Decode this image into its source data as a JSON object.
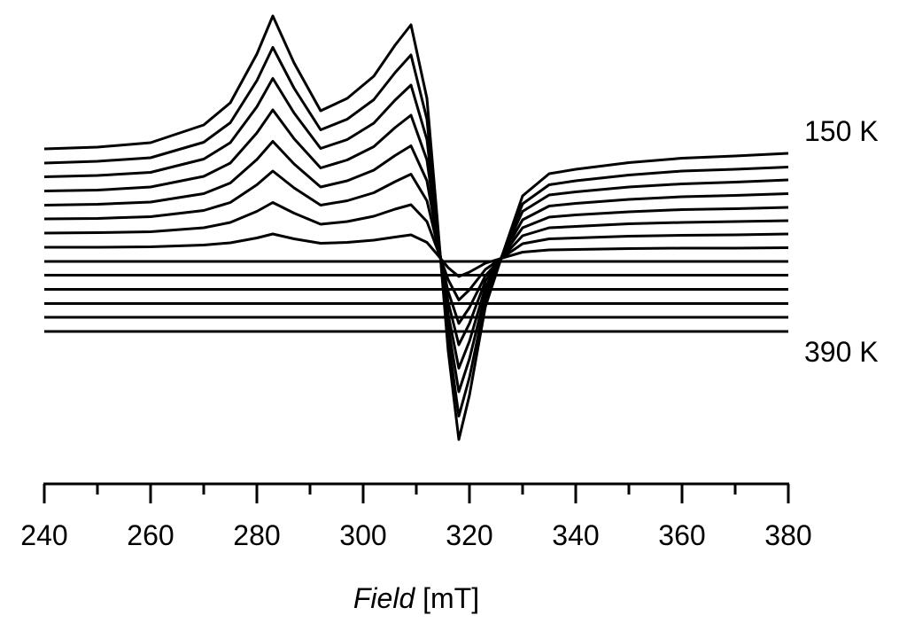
{
  "chart_data": {
    "type": "line",
    "xlabel": [
      "Field",
      "[mT]"
    ],
    "x": [
      240,
      250,
      260,
      270,
      275,
      280,
      283,
      287,
      292,
      297,
      302,
      306,
      309,
      312,
      314,
      316,
      318,
      320,
      323,
      326,
      330,
      335,
      340,
      350,
      360,
      370,
      380
    ],
    "xlim": [
      240,
      380
    ],
    "xticks": [
      240,
      260,
      280,
      300,
      320,
      340,
      360,
      380
    ],
    "xminor_ticks": [
      250,
      270,
      290,
      310,
      330,
      350,
      370
    ],
    "ylim": [
      0,
      106
    ],
    "color": "#000000",
    "series": [
      {
        "name": "150 K",
        "values": [
          75.6,
          76,
          77,
          81,
          86,
          97,
          105.6,
          95,
          84.2,
          87,
          92,
          99,
          103.6,
          87,
          59,
          30,
          10,
          20,
          40,
          51,
          65,
          70,
          71,
          72.5,
          73.5,
          74,
          74.6
        ]
      },
      {
        "values": [
          72.4,
          72.8,
          73.6,
          77.1,
          81.5,
          91,
          98.5,
          89.3,
          79.9,
          82.3,
          86.7,
          92.8,
          96.8,
          82.3,
          58,
          32.7,
          15.3,
          24,
          41.4,
          51,
          63.2,
          67.5,
          68.4,
          69.7,
          70.6,
          71,
          71.5
        ]
      },
      {
        "values": [
          69.3,
          69.6,
          70.3,
          73.3,
          77,
          85.1,
          91.5,
          83.7,
          75.7,
          77.7,
          81.4,
          86.6,
          90,
          77.7,
          57,
          35.6,
          20.8,
          28.2,
          43,
          51.1,
          61.5,
          65.2,
          65.9,
          67,
          67.7,
          68.1,
          68.6
        ]
      },
      {
        "values": [
          66.1,
          66.3,
          67,
          69.4,
          72.4,
          79.2,
          84.4,
          77.9,
          71.3,
          73.1,
          76.1,
          80.4,
          83.2,
          73.1,
          56,
          38.3,
          26.1,
          32.2,
          44.4,
          51.1,
          59.6,
          62.7,
          63.3,
          64.2,
          64.8,
          65.1,
          65.5
        ]
      },
      {
        "values": [
          62.9,
          63.1,
          63.6,
          65.5,
          67.9,
          73.2,
          77.3,
          72.2,
          67,
          68.4,
          70.8,
          74.1,
          76.3,
          68.4,
          54.9,
          41,
          31.4,
          36.2,
          45.8,
          51.1,
          57.8,
          60.2,
          60.7,
          61.4,
          61.9,
          62.1,
          62.4
        ]
      },
      {
        "values": [
          59.8,
          59.9,
          60.3,
          61.7,
          63.5,
          67.5,
          70.6,
          66.8,
          62.9,
          63.9,
          65.7,
          68.2,
          69.9,
          63.9,
          53.8,
          43.4,
          36.2,
          39.8,
          47,
          50.9,
          56,
          57.8,
          58.1,
          58.7,
          59,
          59.2,
          59.4
        ]
      },
      {
        "values": [
          56.6,
          56.7,
          56.9,
          57.8,
          59,
          61.5,
          63.5,
          61.1,
          58.6,
          59.2,
          60.4,
          62,
          63,
          59.2,
          52.8,
          46.1,
          41.5,
          43.8,
          48.4,
          50.9,
          54.2,
          55.3,
          55.5,
          55.9,
          56.1,
          56.2,
          56.4
        ]
      },
      {
        "values": [
          53.4,
          53.4,
          53.5,
          53.9,
          54.4,
          55.5,
          56.4,
          55.3,
          54.3,
          54.5,
          55,
          55.7,
          56.2,
          54.5,
          51.7,
          48.8,
          46.8,
          47.8,
          49.8,
          50.9,
          52.3,
          52.8,
          52.9,
          53.1,
          53.2,
          53.2,
          53.3
        ]
      },
      {
        "values": [
          50.2,
          50.2,
          50.2,
          50.2,
          50.2,
          50.2,
          50.2,
          50.2,
          50.2,
          50.2,
          50.2,
          50.2,
          50.2,
          50.2,
          50.2,
          50.2,
          50.2,
          50.2,
          50.2,
          50.2,
          50.2,
          50.2,
          50.2,
          50.2,
          50.2,
          50.2,
          50.2
        ]
      },
      {
        "values": [
          47.1,
          47.1,
          47.1,
          47.1,
          47.1,
          47.1,
          47.1,
          47.1,
          47.1,
          47.1,
          47.1,
          47.1,
          47.1,
          47.1,
          47.1,
          47.1,
          47.1,
          47.1,
          47.1,
          47.1,
          47.1,
          47.1,
          47.1,
          47.1,
          47.1,
          47.1,
          47.1
        ]
      },
      {
        "values": [
          43.9,
          43.9,
          43.9,
          43.9,
          43.9,
          43.9,
          43.9,
          43.9,
          43.9,
          43.9,
          43.9,
          43.9,
          43.9,
          43.9,
          43.9,
          43.9,
          43.9,
          43.9,
          43.9,
          43.9,
          43.9,
          43.9,
          43.9,
          43.9,
          43.9,
          43.9,
          43.9
        ]
      },
      {
        "values": [
          40.7,
          40.7,
          40.7,
          40.7,
          40.7,
          40.7,
          40.7,
          40.7,
          40.7,
          40.7,
          40.7,
          40.7,
          40.7,
          40.7,
          40.7,
          40.7,
          40.7,
          40.7,
          40.7,
          40.7,
          40.7,
          40.7,
          40.7,
          40.7,
          40.7,
          40.7,
          40.7
        ]
      },
      {
        "values": [
          37.6,
          37.6,
          37.6,
          37.6,
          37.6,
          37.6,
          37.6,
          37.6,
          37.6,
          37.6,
          37.6,
          37.6,
          37.6,
          37.6,
          37.6,
          37.6,
          37.6,
          37.6,
          37.6,
          37.6,
          37.6,
          37.6,
          37.6,
          37.6,
          37.6,
          37.6,
          37.6
        ]
      },
      {
        "name": "390 K",
        "values": [
          34.4,
          34.4,
          34.4,
          34.4,
          34.4,
          34.4,
          34.4,
          34.4,
          34.4,
          34.4,
          34.4,
          34.4,
          34.4,
          34.4,
          34.4,
          34.4,
          34.4,
          34.4,
          34.4,
          34.4,
          34.4,
          34.4,
          34.4,
          34.4,
          34.4,
          34.4,
          34.4
        ]
      }
    ]
  }
}
